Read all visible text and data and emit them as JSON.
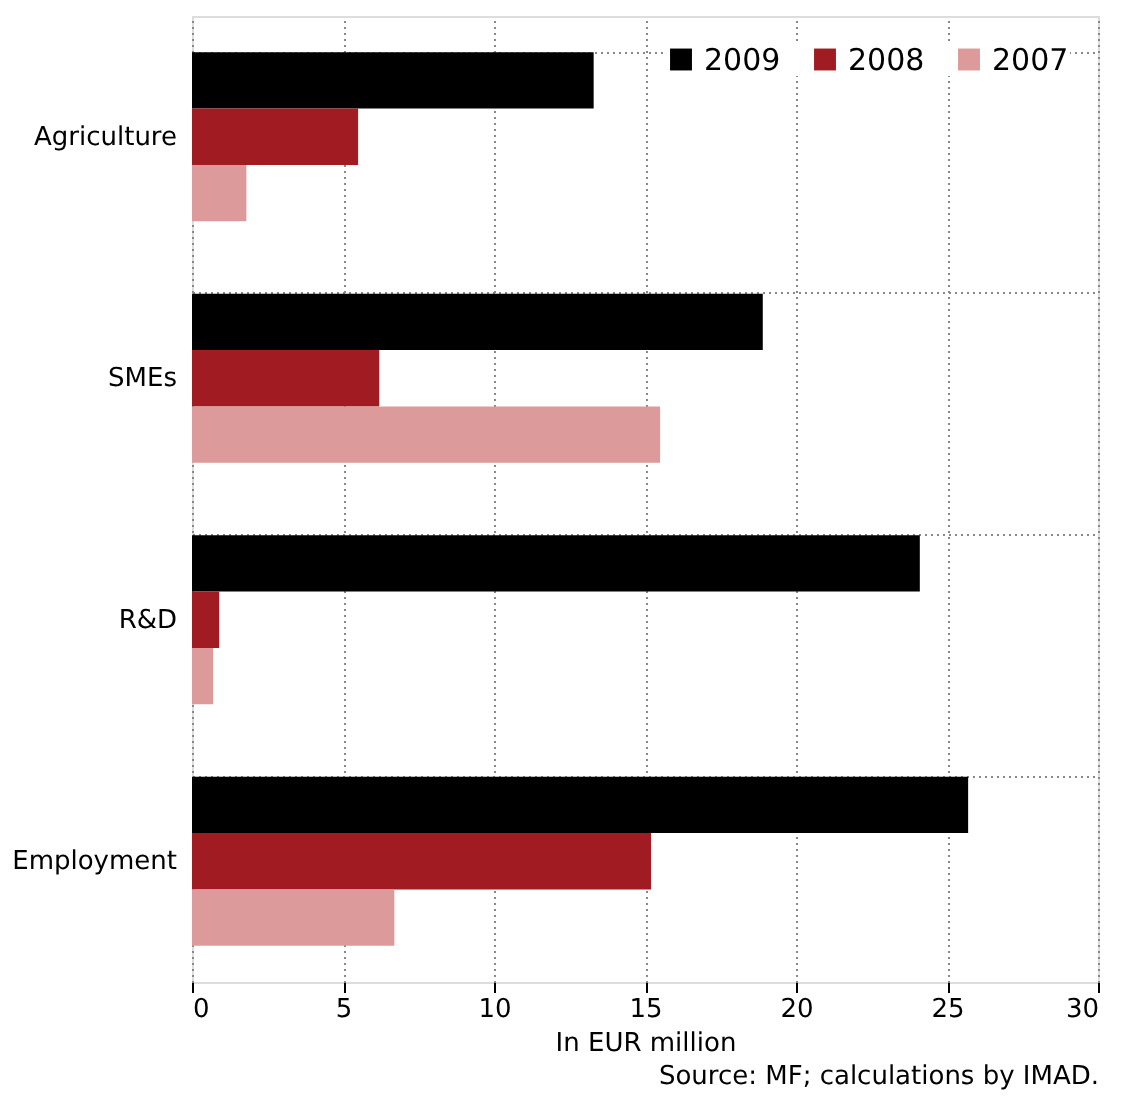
{
  "chart_data": {
    "type": "bar",
    "orientation": "horizontal",
    "categories": [
      "Agriculture",
      "SMEs",
      "R&D",
      "Employment"
    ],
    "series": [
      {
        "name": "2009",
        "color": "#000000",
        "values": [
          13.3,
          18.9,
          24.1,
          25.7
        ]
      },
      {
        "name": "2008",
        "color": "#a01c22",
        "values": [
          5.5,
          6.2,
          0.9,
          15.2
        ]
      },
      {
        "name": "2007",
        "color": "#dc9a9a",
        "values": [
          1.8,
          15.5,
          0.7,
          6.7
        ]
      }
    ],
    "xlim": [
      0,
      30
    ],
    "xticks": [
      0,
      5,
      10,
      15,
      20,
      25,
      30
    ],
    "xlabel": "In EUR million",
    "grid": true,
    "legend": "top right",
    "annotations": [
      "Source: MF; calculations by IMAD."
    ]
  }
}
